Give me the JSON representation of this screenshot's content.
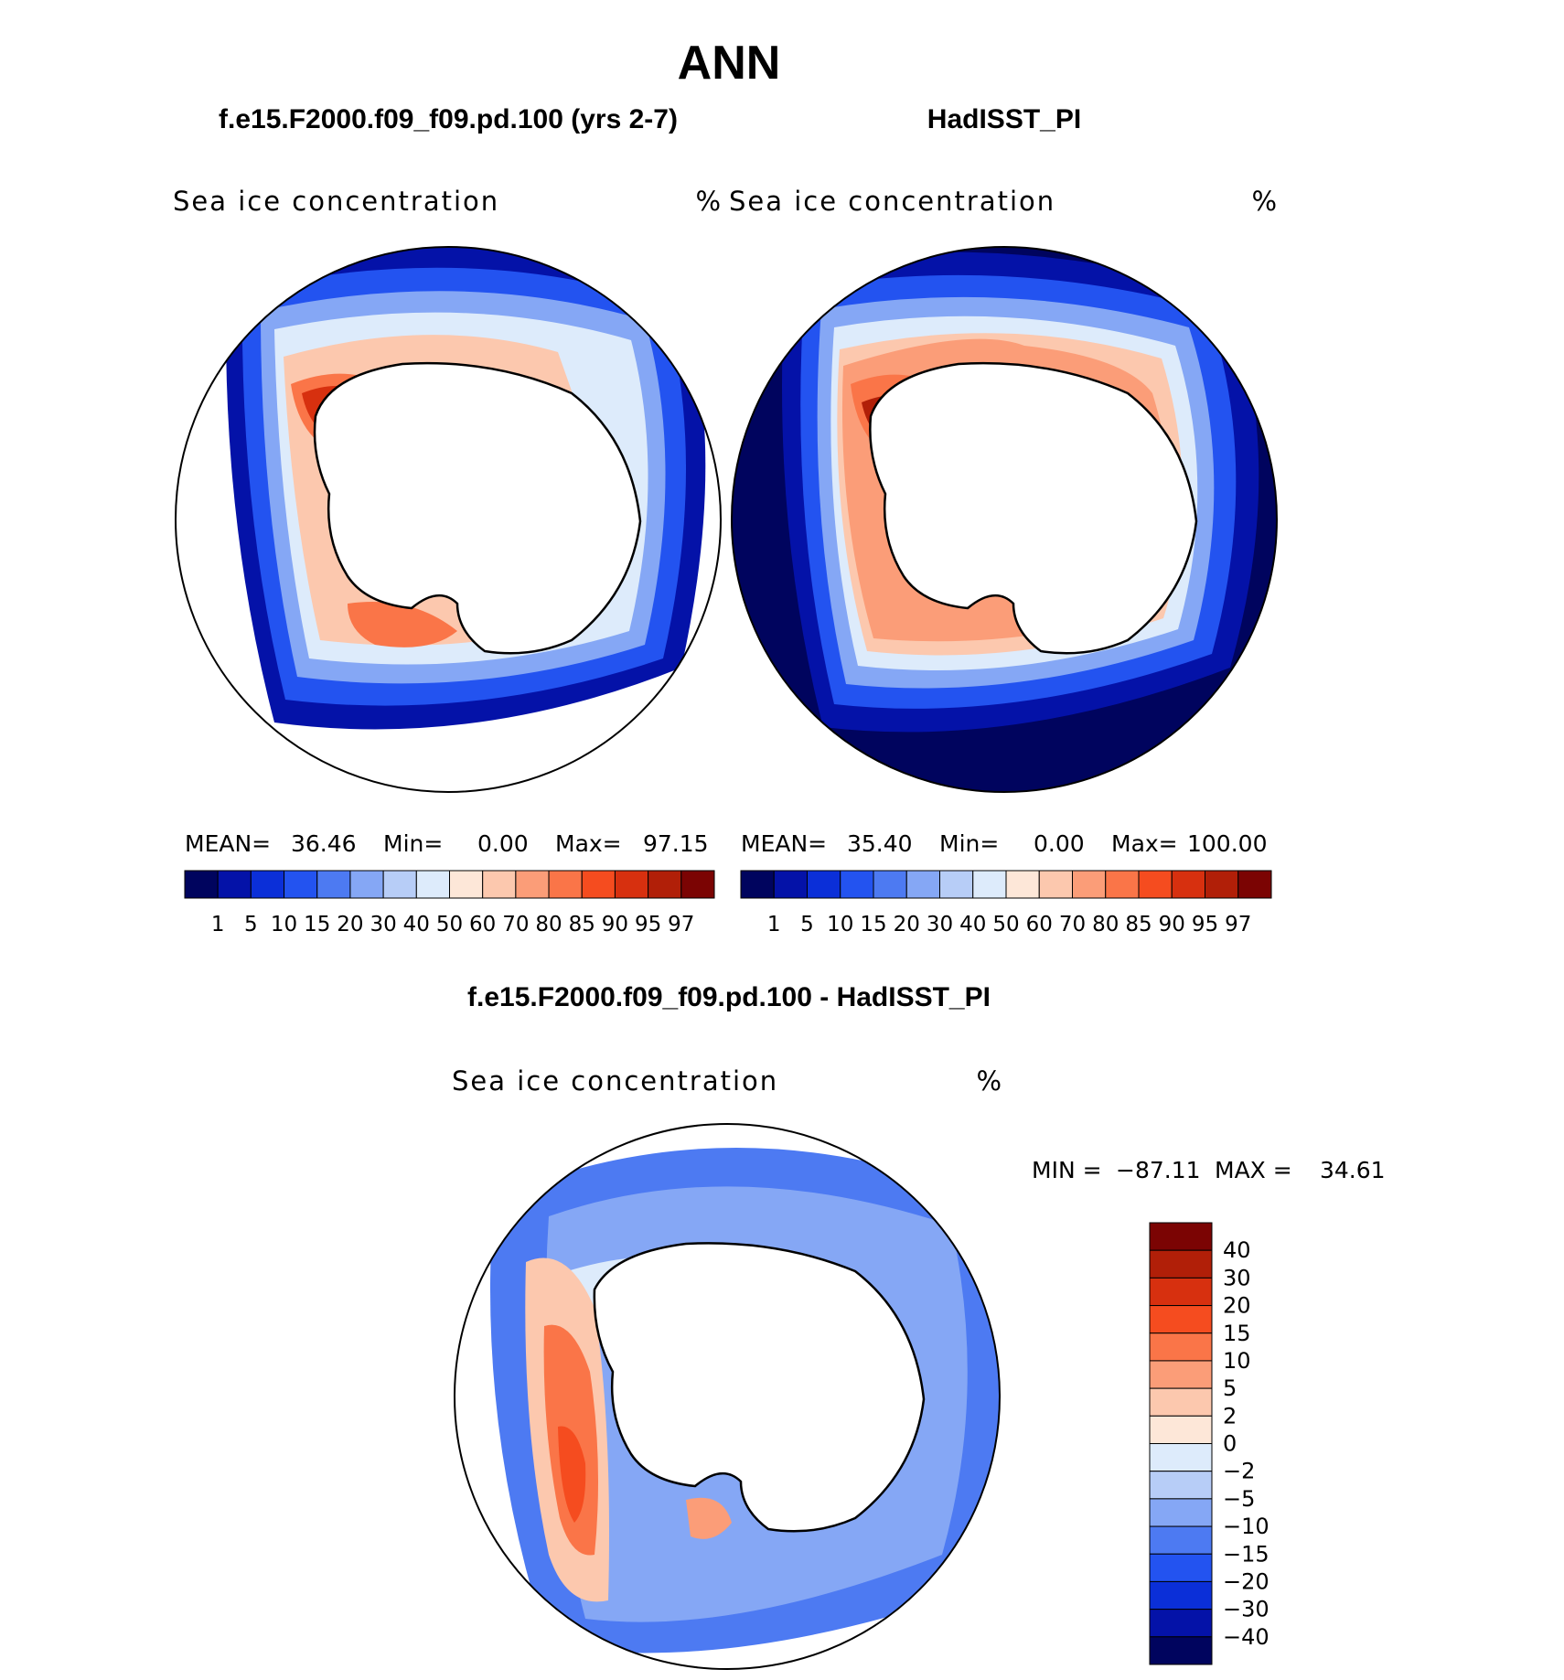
{
  "figure": {
    "season": "ANN",
    "panels": [
      {
        "case": "f.e15.F2000.f09_f09.pd.100 (yrs 2-7)",
        "variable": "Sea ice concentration",
        "units": "%",
        "stats": {
          "mean_label": "MEAN=",
          "mean": "36.46",
          "min_label": "Min=",
          "min": "0.00",
          "max_label": "Max=",
          "max": "97.15"
        }
      },
      {
        "case": "HadISST_PI",
        "variable": "Sea ice concentration",
        "units": "%",
        "stats": {
          "mean_label": "MEAN=",
          "mean": "35.40",
          "min_label": "Min=",
          "min": "0.00",
          "max_label": "Max=",
          "max": "100.00"
        }
      },
      {
        "case": "f.e15.F2000.f09_f09.pd.100 - HadISST_PI",
        "variable": "Sea ice concentration",
        "units": "%",
        "stats": {
          "min_label": "MIN =",
          "min": "−87.11",
          "max_label": "MAX =",
          "max": "34.61"
        }
      }
    ],
    "concentration_colorbar": {
      "levels": [
        "1",
        "5",
        "10",
        "15",
        "20",
        "30",
        "40",
        "50",
        "60",
        "70",
        "80",
        "85",
        "90",
        "95",
        "97"
      ],
      "colors": [
        "#00045e",
        "#0412a8",
        "#0b2fd8",
        "#2353f0",
        "#4d7af2",
        "#85a7f5",
        "#b7cdf7",
        "#ddebfb",
        "#fde7d8",
        "#fcc8ae",
        "#fb9d78",
        "#fa7548",
        "#f54c1f",
        "#d7300f",
        "#b11f08",
        "#7b0403"
      ]
    },
    "difference_colorbar": {
      "levels": [
        "40",
        "30",
        "20",
        "15",
        "10",
        "5",
        "2",
        "0",
        "−2",
        "−5",
        "−10",
        "−15",
        "−20",
        "−30",
        "−40"
      ],
      "colors": [
        "#7b0403",
        "#b11f08",
        "#d7300f",
        "#f54c1f",
        "#fa7548",
        "#fb9d78",
        "#fcc8ae",
        "#fde7d8",
        "#ddebfb",
        "#b7cdf7",
        "#85a7f5",
        "#4d7af2",
        "#2353f0",
        "#0b2fd8",
        "#0412a8",
        "#00045e"
      ]
    }
  }
}
